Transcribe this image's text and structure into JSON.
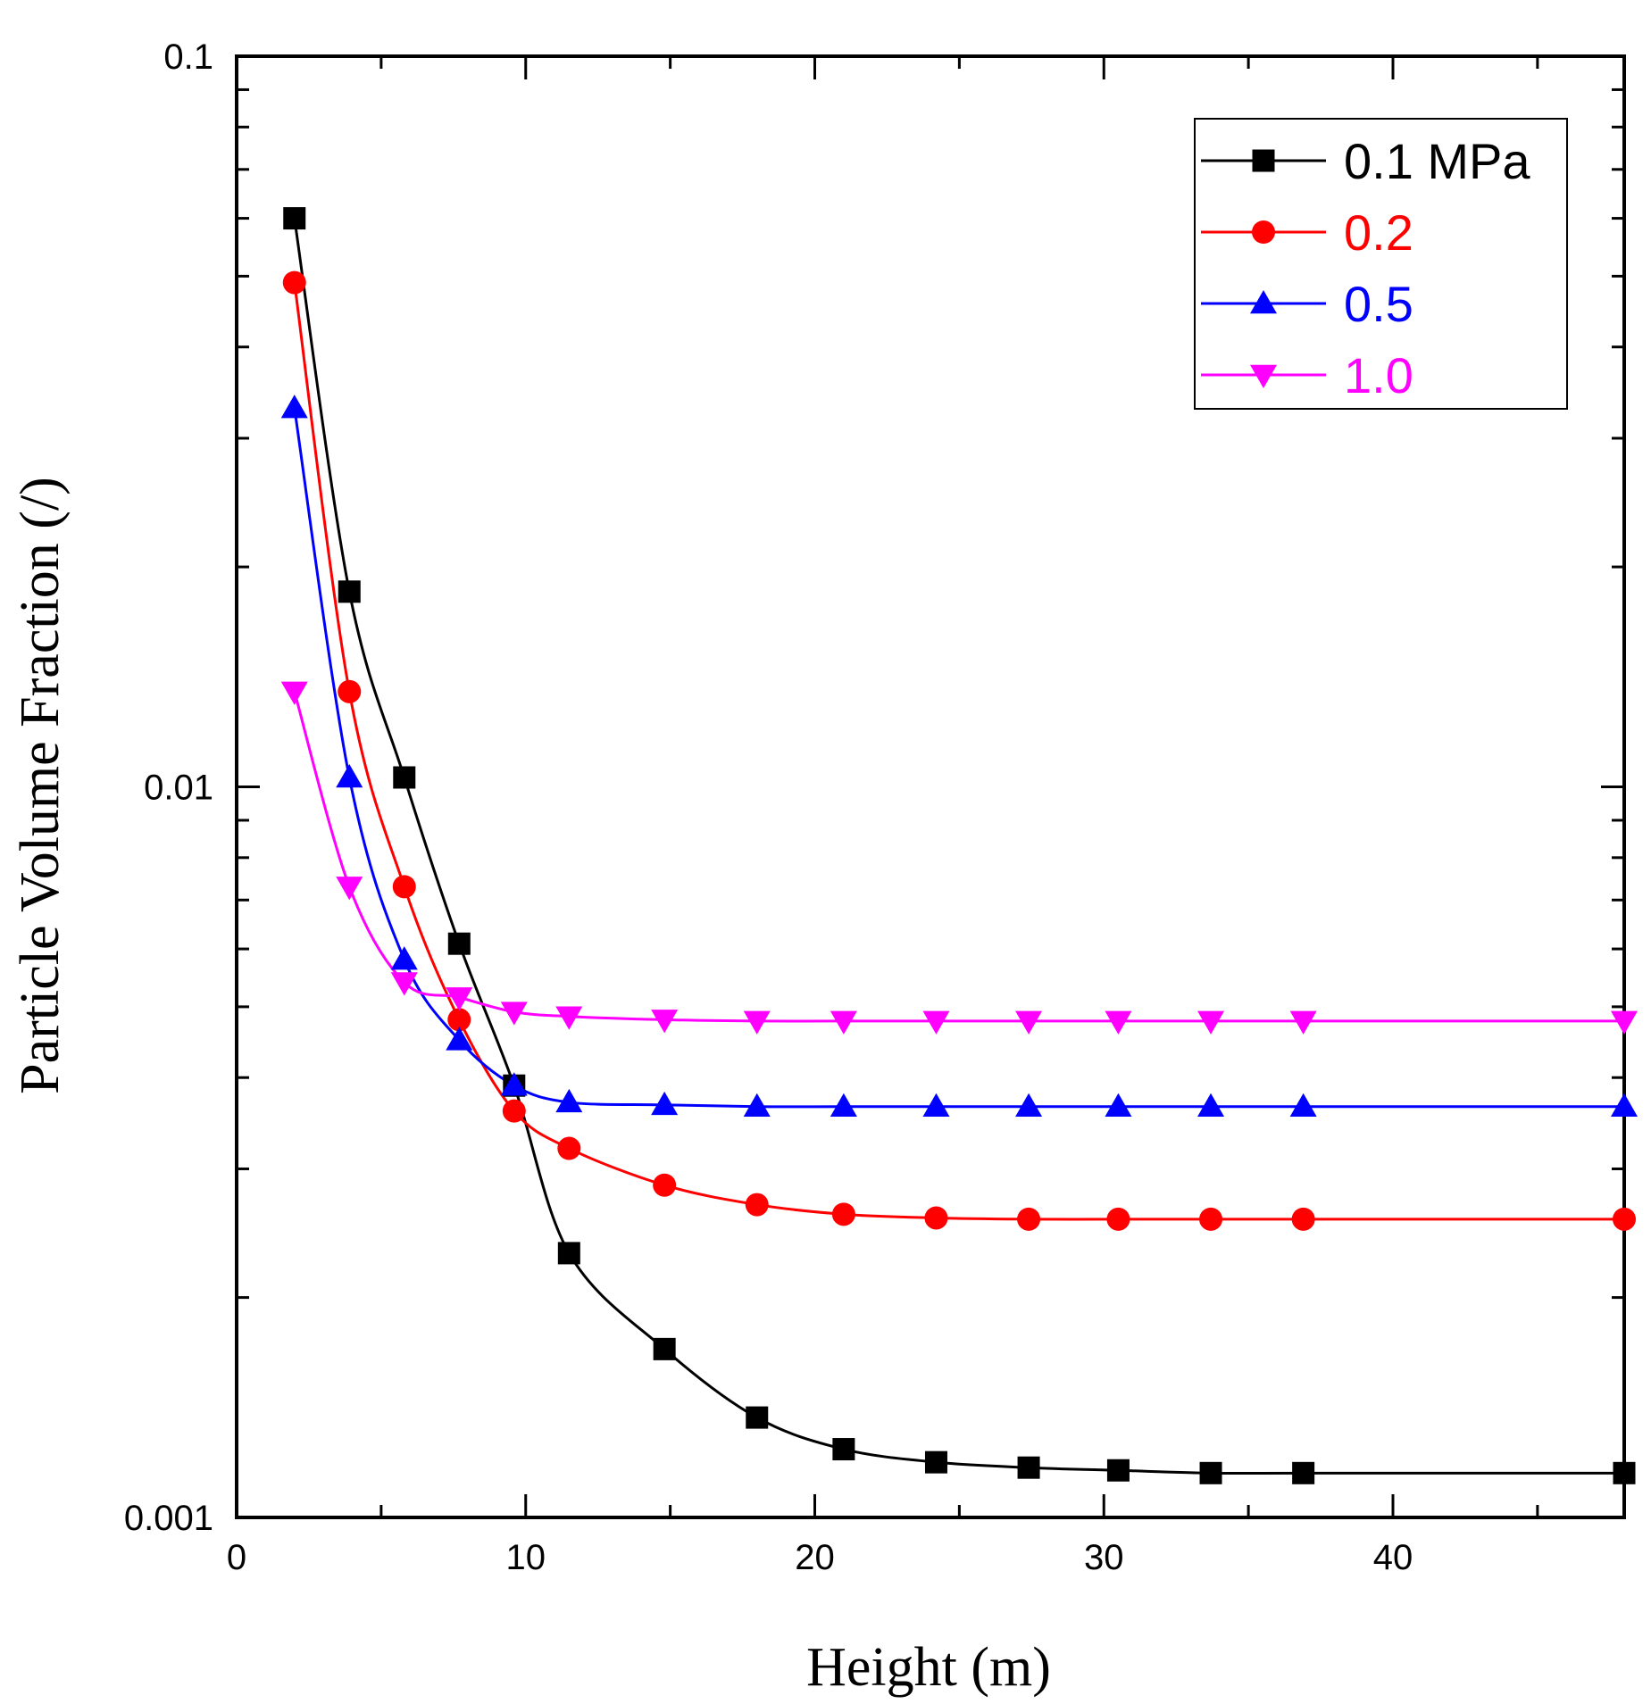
{
  "chart_data": {
    "type": "line",
    "title": "",
    "xlabel": "Height (m)",
    "ylabel": "Particle Volume Fraction (/)",
    "xlim": [
      0,
      48
    ],
    "ylim": [
      0.001,
      0.1
    ],
    "yscale": "log",
    "xticks": [
      0,
      10,
      20,
      30,
      40
    ],
    "xtick_labels": [
      "0",
      "10",
      "20",
      "30",
      "40"
    ],
    "yticks": [
      0.001,
      0.01,
      0.1
    ],
    "ytick_labels": [
      "0.001",
      "0.01",
      "0.1"
    ],
    "legend_position": "top-right",
    "series": [
      {
        "name": "0.1 MPa",
        "color": "#000000",
        "marker": "square",
        "x": [
          2,
          3.9,
          5.8,
          7.7,
          9.6,
          11.5,
          14.8,
          18,
          21,
          24.2,
          27.4,
          30.5,
          33.7,
          36.9,
          48
        ],
        "y": [
          0.06,
          0.0185,
          0.0103,
          0.0061,
          0.0039,
          0.0023,
          0.0017,
          0.00137,
          0.00124,
          0.00119,
          0.00117,
          0.00116,
          0.00115,
          0.00115,
          0.00115
        ]
      },
      {
        "name": "0.2",
        "color": "#ff0000",
        "marker": "circle",
        "x": [
          2,
          3.9,
          5.8,
          7.7,
          9.6,
          11.5,
          14.8,
          18,
          21,
          24.2,
          27.4,
          30.5,
          33.7,
          36.9,
          48
        ],
        "y": [
          0.049,
          0.0135,
          0.0073,
          0.0048,
          0.0036,
          0.0032,
          0.00285,
          0.00268,
          0.0026,
          0.00257,
          0.00256,
          0.00256,
          0.00256,
          0.00256,
          0.00256
        ]
      },
      {
        "name": "0.5",
        "color": "#0000ff",
        "marker": "triangle-up",
        "x": [
          2,
          3.9,
          5.8,
          7.7,
          9.6,
          11.5,
          14.8,
          18,
          21,
          24.2,
          27.4,
          30.5,
          33.7,
          36.9,
          48
        ],
        "y": [
          0.033,
          0.0103,
          0.0058,
          0.0045,
          0.0039,
          0.0037,
          0.00367,
          0.00365,
          0.00365,
          0.00365,
          0.00365,
          0.00365,
          0.00365,
          0.00365,
          0.00365
        ]
      },
      {
        "name": "1.0",
        "color": "#ff00ff",
        "marker": "triangle-down",
        "x": [
          2,
          3.9,
          5.8,
          7.7,
          9.6,
          11.5,
          14.8,
          18,
          21,
          24.2,
          27.4,
          30.5,
          33.7,
          36.9,
          48
        ],
        "y": [
          0.0135,
          0.0073,
          0.0054,
          0.00515,
          0.00492,
          0.00485,
          0.0048,
          0.00478,
          0.00478,
          0.00478,
          0.00478,
          0.00478,
          0.00478,
          0.00478,
          0.00478
        ]
      }
    ]
  }
}
